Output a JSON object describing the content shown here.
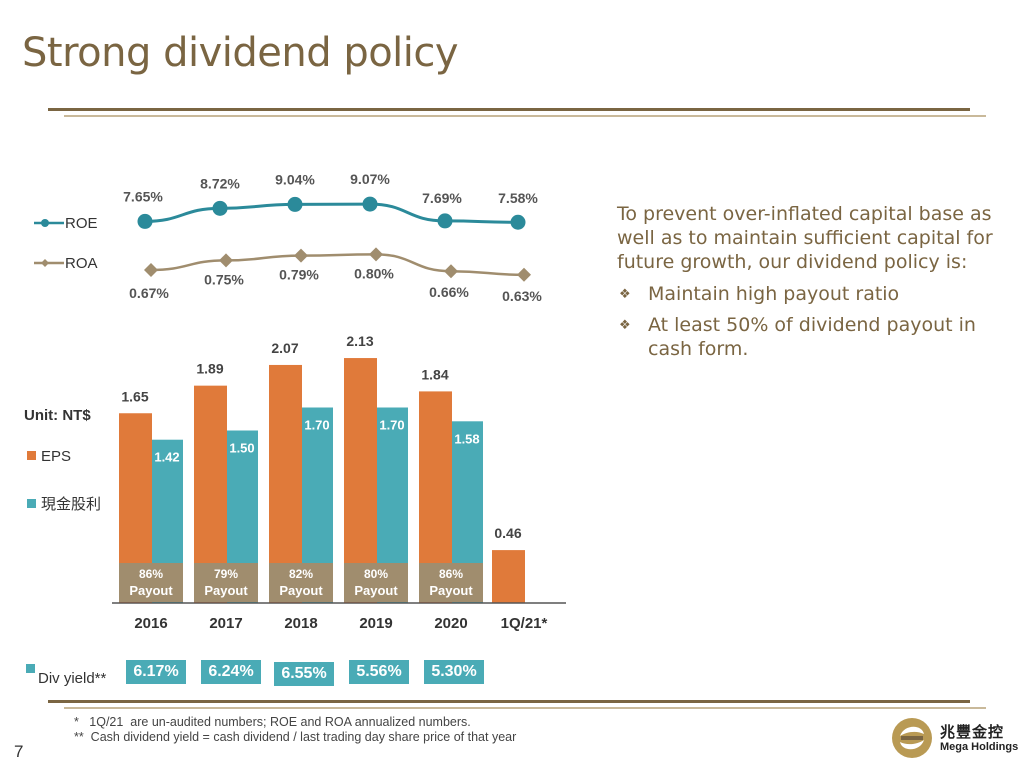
{
  "page": {
    "title": "Strong dividend policy",
    "page_number": "7"
  },
  "colors": {
    "title": "#7a6542",
    "rule_dark": "#7a6542",
    "rule_light": "#c9b99a",
    "roe": "#2b8a9a",
    "roa": "#a08d6e",
    "eps": "#e07a3a",
    "dividend": "#4aabb6",
    "payout_bg": "#a08d6e"
  },
  "legend": {
    "roe": "ROE",
    "roa": "ROA",
    "unit": "Unit: NT$",
    "eps": "EPS",
    "dividend": "現金股利",
    "div_yield": "Div yield**"
  },
  "chart_data": [
    {
      "type": "line",
      "title": "",
      "categories": [
        "2016",
        "2017",
        "2018",
        "2019",
        "2020",
        "1Q/21*"
      ],
      "series": [
        {
          "name": "ROE",
          "values": [
            7.65,
            8.72,
            9.04,
            9.07,
            7.69,
            7.58
          ],
          "labels": [
            "7.65%",
            "8.72%",
            "9.04%",
            "9.07%",
            "7.69%",
            "7.58%"
          ]
        },
        {
          "name": "ROA",
          "values": [
            0.67,
            0.75,
            0.79,
            0.8,
            0.66,
            0.63
          ],
          "labels": [
            "0.67%",
            "0.75%",
            "0.79%",
            "0.80%",
            "0.66%",
            "0.63%"
          ]
        }
      ]
    },
    {
      "type": "bar",
      "title": "",
      "ylabel": "Unit: NT$",
      "categories": [
        "2016",
        "2017",
        "2018",
        "2019",
        "2020",
        "1Q/21*"
      ],
      "series": [
        {
          "name": "EPS",
          "values": [
            1.65,
            1.89,
            2.07,
            2.13,
            1.84,
            0.46
          ],
          "labels": [
            "1.65",
            "1.89",
            "2.07",
            "2.13",
            "1.84",
            "0.46"
          ]
        },
        {
          "name": "現金股利",
          "values": [
            1.42,
            1.5,
            1.7,
            1.7,
            1.58,
            null
          ],
          "labels": [
            "1.42",
            "1.50",
            "1.70",
            "1.70",
            "1.58",
            ""
          ]
        }
      ],
      "payout": [
        "86%",
        "79%",
        "82%",
        "80%",
        "86%"
      ],
      "payout_word": "Payout",
      "div_yield": [
        "6.17%",
        "6.24%",
        "6.55%",
        "5.56%",
        "5.30%"
      ],
      "ylim": [
        0,
        2.2
      ]
    }
  ],
  "right_panel": {
    "paragraph": "To prevent over-inflated capital base as well as to maintain sufficient capital for future growth, our dividend policy is:",
    "bullets": [
      "Maintain high payout ratio",
      "At least 50% of dividend payout in cash form."
    ],
    "bullet_marker": "❖"
  },
  "footnotes": [
    "*   1Q/21  are un-audited numbers; ROE and ROA annualized numbers.",
    "**  Cash dividend yield = cash dividend / last trading day share price of that year"
  ],
  "logo": {
    "cn": "兆豐金控",
    "en": "Mega Holdings"
  }
}
